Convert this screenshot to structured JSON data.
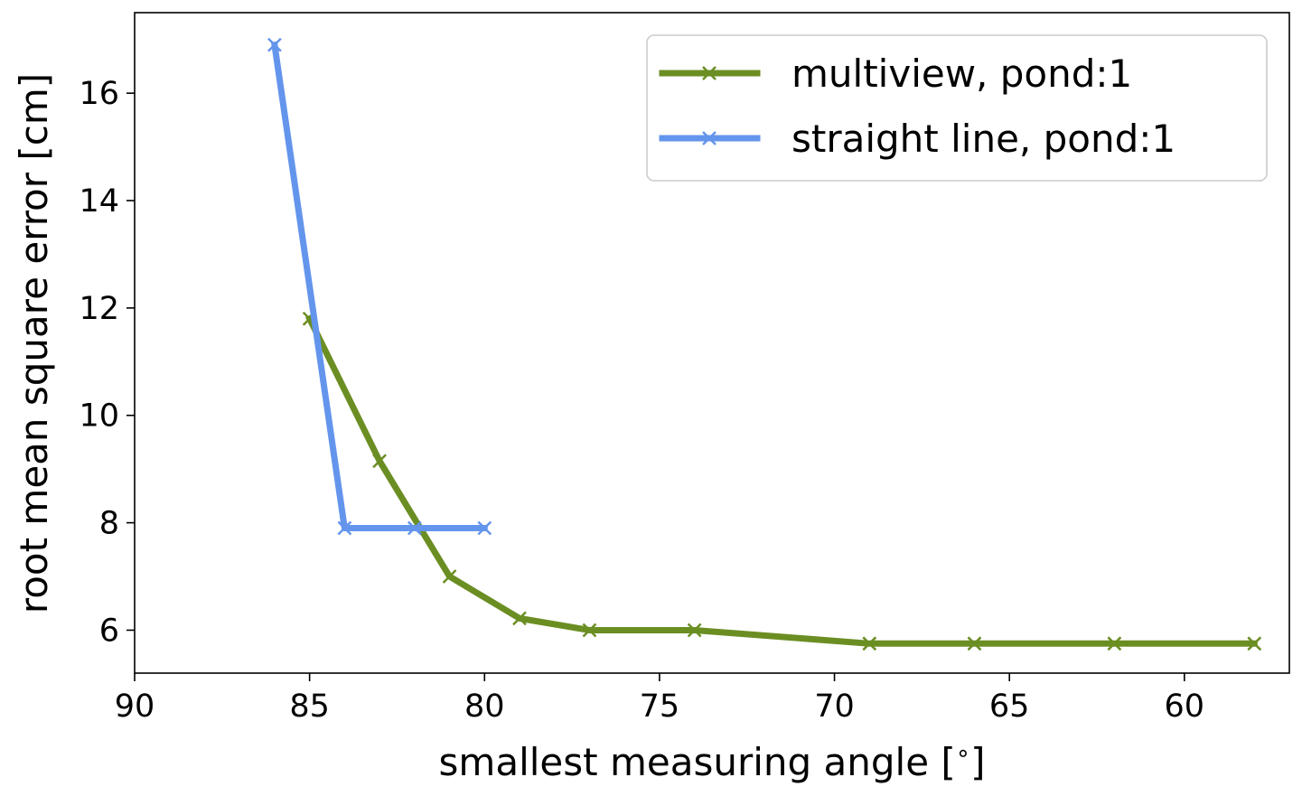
{
  "chart_data": {
    "type": "line",
    "title": "",
    "xlabel": "smallest measuring angle [$^\\circ$]",
    "xlabel_display": "smallest measuring angle [",
    "xlabel_degree": "∘",
    "xlabel_close": "]",
    "ylabel": "root mean square error [cm]",
    "xlim": [
      90,
      57
    ],
    "x_inverted": true,
    "ylim": [
      5.2,
      17.5
    ],
    "grid": false,
    "legend_position": "top-right",
    "xticks": [
      90,
      85,
      80,
      75,
      70,
      65,
      60
    ],
    "xtick_labels": [
      "90",
      "85",
      "80",
      "75",
      "70",
      "65",
      "60"
    ],
    "yticks": [
      6,
      8,
      10,
      12,
      14,
      16
    ],
    "ytick_labels": [
      "6",
      "8",
      "10",
      "12",
      "14",
      "16"
    ],
    "series": [
      {
        "name": "multiview, pond:1",
        "color": "#6b8e23",
        "marker": "x",
        "points": [
          [
            85.0,
            11.8
          ],
          [
            83.0,
            9.15
          ],
          [
            81.0,
            7.0
          ],
          [
            79.0,
            6.22
          ],
          [
            77.0,
            6.0
          ],
          [
            74.0,
            6.0
          ],
          [
            69.0,
            5.75
          ],
          [
            66.0,
            5.75
          ],
          [
            62.0,
            5.75
          ],
          [
            58.0,
            5.75
          ]
        ]
      },
      {
        "name": "straight line, pond:1",
        "color": "#6495ed",
        "marker": "x",
        "points": [
          [
            86.0,
            16.9
          ],
          [
            84.0,
            7.9
          ],
          [
            82.0,
            7.9
          ],
          [
            80.0,
            7.9
          ]
        ]
      }
    ]
  }
}
